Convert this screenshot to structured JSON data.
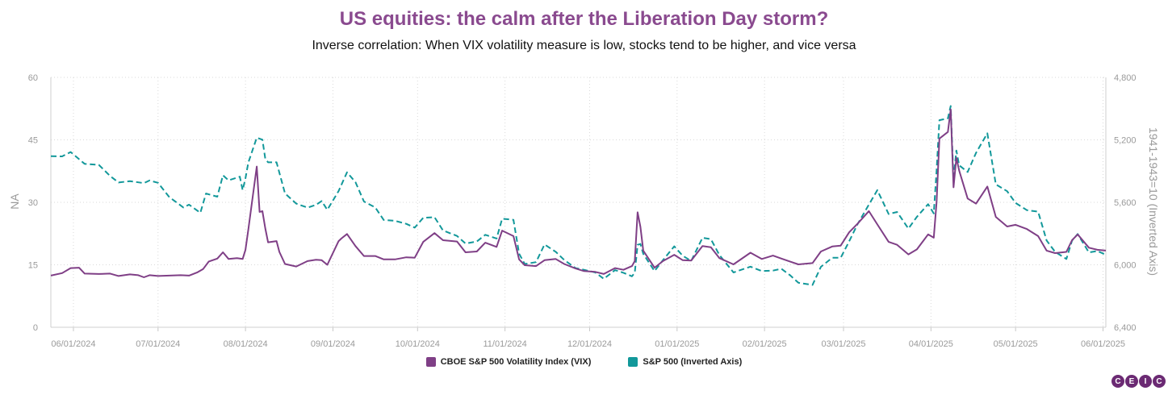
{
  "title": "US equities: the calm after the Liberation Day storm?",
  "subtitle": "Inverse correlation: When VIX volatility measure is low, stocks tend to be higher, and vice versa",
  "colors": {
    "vix": "#7f3f86",
    "spx": "#12989a",
    "title": "#8a4a8f",
    "grid": "#d9d9d9"
  },
  "logo": [
    "C",
    "E",
    "I",
    "C"
  ],
  "chart_data": {
    "type": "line",
    "x_ticks": [
      "06/01/2024",
      "07/01/2024",
      "08/01/2024",
      "09/01/2024",
      "10/01/2024",
      "11/01/2024",
      "12/01/2024",
      "01/01/2025",
      "02/01/2025",
      "03/01/2025",
      "04/01/2025",
      "05/01/2025",
      "06/01/2025"
    ],
    "xlim": [
      "05/24/2024",
      "06/02/2025"
    ],
    "left_axis": {
      "label": "NA",
      "ylim": [
        0,
        60
      ],
      "ticks": [
        "0",
        "15",
        "30",
        "45",
        "60"
      ]
    },
    "right_axis": {
      "label": "1941-1943=10 (Inverted Axis)",
      "ylim": [
        6400,
        4800
      ],
      "inverted": true,
      "ticks": [
        "4,800",
        "5,200",
        "5,600",
        "6,000",
        "6,400"
      ]
    },
    "grid": true,
    "legend_position": "bottom",
    "series": [
      {
        "name": "CBOE S&P 500 Volatility Index (VIX)",
        "axis": "left",
        "style": "solid",
        "points": [
          [
            "05/24/2024",
            12.4
          ],
          [
            "05/28/2024",
            13.0
          ],
          [
            "05/31/2024",
            14.2
          ],
          [
            "06/03/2024",
            14.3
          ],
          [
            "06/05/2024",
            12.9
          ],
          [
            "06/10/2024",
            12.8
          ],
          [
            "06/14/2024",
            12.9
          ],
          [
            "06/17/2024",
            12.3
          ],
          [
            "06/21/2024",
            12.7
          ],
          [
            "06/24/2024",
            12.5
          ],
          [
            "06/26/2024",
            12.0
          ],
          [
            "06/28/2024",
            12.5
          ],
          [
            "07/01/2024",
            12.3
          ],
          [
            "07/05/2024",
            12.4
          ],
          [
            "07/09/2024",
            12.5
          ],
          [
            "07/12/2024",
            12.4
          ],
          [
            "07/15/2024",
            13.2
          ],
          [
            "07/17/2024",
            14.0
          ],
          [
            "07/19/2024",
            15.8
          ],
          [
            "07/22/2024",
            16.5
          ],
          [
            "07/24/2024",
            18.0
          ],
          [
            "07/26/2024",
            16.4
          ],
          [
            "07/29/2024",
            16.6
          ],
          [
            "07/31/2024",
            16.4
          ],
          [
            "08/01/2024",
            18.6
          ],
          [
            "08/02/2024",
            23.4
          ],
          [
            "08/05/2024",
            38.6
          ],
          [
            "08/06/2024",
            27.7
          ],
          [
            "08/07/2024",
            27.9
          ],
          [
            "08/08/2024",
            23.8
          ],
          [
            "08/09/2024",
            20.4
          ],
          [
            "08/12/2024",
            20.7
          ],
          [
            "08/13/2024",
            18.1
          ],
          [
            "08/15/2024",
            15.2
          ],
          [
            "08/19/2024",
            14.6
          ],
          [
            "08/23/2024",
            15.9
          ],
          [
            "08/26/2024",
            16.2
          ],
          [
            "08/28/2024",
            16.1
          ],
          [
            "08/30/2024",
            15.0
          ],
          [
            "09/03/2024",
            20.7
          ],
          [
            "09/04/2024",
            21.3
          ],
          [
            "09/06/2024",
            22.4
          ],
          [
            "09/09/2024",
            19.5
          ],
          [
            "09/12/2024",
            17.1
          ],
          [
            "09/16/2024",
            17.1
          ],
          [
            "09/19/2024",
            16.3
          ],
          [
            "09/23/2024",
            16.3
          ],
          [
            "09/27/2024",
            16.8
          ],
          [
            "09/30/2024",
            16.7
          ],
          [
            "10/03/2024",
            20.5
          ],
          [
            "10/07/2024",
            22.6
          ],
          [
            "10/10/2024",
            20.9
          ],
          [
            "10/15/2024",
            20.6
          ],
          [
            "10/18/2024",
            18.0
          ],
          [
            "10/22/2024",
            18.2
          ],
          [
            "10/25/2024",
            20.3
          ],
          [
            "10/29/2024",
            19.3
          ],
          [
            "10/31/2024",
            23.2
          ],
          [
            "11/04/2024",
            21.9
          ],
          [
            "11/06/2024",
            16.3
          ],
          [
            "11/08/2024",
            14.9
          ],
          [
            "11/12/2024",
            14.7
          ],
          [
            "11/15/2024",
            16.1
          ],
          [
            "11/19/2024",
            16.4
          ],
          [
            "11/22/2024",
            15.2
          ],
          [
            "11/26/2024",
            14.1
          ],
          [
            "11/29/2024",
            13.5
          ],
          [
            "12/03/2024",
            13.3
          ],
          [
            "12/06/2024",
            12.8
          ],
          [
            "12/10/2024",
            14.2
          ],
          [
            "12/13/2024",
            13.8
          ],
          [
            "12/16/2024",
            14.7
          ],
          [
            "12/17/2024",
            15.9
          ],
          [
            "12/18/2024",
            27.6
          ],
          [
            "12/19/2024",
            24.1
          ],
          [
            "12/20/2024",
            18.4
          ],
          [
            "12/24/2024",
            14.3
          ],
          [
            "12/27/2024",
            15.9
          ],
          [
            "12/31/2024",
            17.4
          ],
          [
            "01/03/2025",
            16.1
          ],
          [
            "01/06/2025",
            16.0
          ],
          [
            "01/10/2025",
            19.5
          ],
          [
            "01/13/2025",
            19.2
          ],
          [
            "01/16/2025",
            16.6
          ],
          [
            "01/21/2025",
            15.1
          ],
          [
            "01/27/2025",
            17.9
          ],
          [
            "01/31/2025",
            16.4
          ],
          [
            "02/04/2025",
            17.2
          ],
          [
            "02/07/2025",
            16.5
          ],
          [
            "02/10/2025",
            15.8
          ],
          [
            "02/13/2025",
            15.1
          ],
          [
            "02/18/2025",
            15.4
          ],
          [
            "02/21/2025",
            18.2
          ],
          [
            "02/25/2025",
            19.4
          ],
          [
            "02/28/2025",
            19.6
          ],
          [
            "03/03/2025",
            22.8
          ],
          [
            "03/06/2025",
            24.9
          ],
          [
            "03/10/2025",
            27.9
          ],
          [
            "03/13/2025",
            24.7
          ],
          [
            "03/17/2025",
            20.5
          ],
          [
            "03/20/2025",
            19.8
          ],
          [
            "03/24/2025",
            17.5
          ],
          [
            "03/27/2025",
            18.7
          ],
          [
            "03/31/2025",
            22.3
          ],
          [
            "04/02/2025",
            21.5
          ],
          [
            "04/03/2025",
            30.0
          ],
          [
            "04/04/2025",
            45.3
          ],
          [
            "04/07/2025",
            46.9
          ],
          [
            "04/08/2025",
            52.3
          ],
          [
            "04/09/2025",
            33.6
          ],
          [
            "04/10/2025",
            40.7
          ],
          [
            "04/11/2025",
            37.6
          ],
          [
            "04/14/2025",
            30.9
          ],
          [
            "04/17/2025",
            29.7
          ],
          [
            "04/21/2025",
            33.8
          ],
          [
            "04/24/2025",
            26.5
          ],
          [
            "04/28/2025",
            24.2
          ],
          [
            "05/01/2025",
            24.6
          ],
          [
            "05/05/2025",
            23.6
          ],
          [
            "05/09/2025",
            21.9
          ],
          [
            "05/12/2025",
            18.4
          ],
          [
            "05/15/2025",
            17.8
          ],
          [
            "05/19/2025",
            18.1
          ],
          [
            "05/21/2025",
            20.9
          ],
          [
            "05/23/2025",
            22.3
          ],
          [
            "05/27/2025",
            19.1
          ],
          [
            "05/30/2025",
            18.6
          ],
          [
            "06/02/2025",
            18.4
          ]
        ]
      },
      {
        "name": "S&P 500 (Inverted Axis)",
        "axis": "right",
        "style": "dashed",
        "points": [
          [
            "05/24/2024",
            5305
          ],
          [
            "05/28/2024",
            5306
          ],
          [
            "05/31/2024",
            5278
          ],
          [
            "06/05/2024",
            5354
          ],
          [
            "06/10/2024",
            5360
          ],
          [
            "06/14/2024",
            5431
          ],
          [
            "06/17/2024",
            5473
          ],
          [
            "06/21/2024",
            5464
          ],
          [
            "06/26/2024",
            5477
          ],
          [
            "06/28/2024",
            5460
          ],
          [
            "07/01/2024",
            5475
          ],
          [
            "07/05/2024",
            5567
          ],
          [
            "07/10/2024",
            5633
          ],
          [
            "07/12/2024",
            5615
          ],
          [
            "07/16/2024",
            5667
          ],
          [
            "07/18/2024",
            5544
          ],
          [
            "07/22/2024",
            5564
          ],
          [
            "07/24/2024",
            5427
          ],
          [
            "07/26/2024",
            5459
          ],
          [
            "07/30/2024",
            5436
          ],
          [
            "07/31/2024",
            5522
          ],
          [
            "08/01/2024",
            5446
          ],
          [
            "08/02/2024",
            5346
          ],
          [
            "08/05/2024",
            5186
          ],
          [
            "08/07/2024",
            5199
          ],
          [
            "08/08/2024",
            5319
          ],
          [
            "08/09/2024",
            5344
          ],
          [
            "08/12/2024",
            5344
          ],
          [
            "08/15/2024",
            5543
          ],
          [
            "08/19/2024",
            5608
          ],
          [
            "08/23/2024",
            5634
          ],
          [
            "08/26/2024",
            5616
          ],
          [
            "08/28/2024",
            5592
          ],
          [
            "08/30/2024",
            5648
          ],
          [
            "09/03/2024",
            5528
          ],
          [
            "09/06/2024",
            5408
          ],
          [
            "09/09/2024",
            5471
          ],
          [
            "09/12/2024",
            5595
          ],
          [
            "09/16/2024",
            5633
          ],
          [
            "09/19/2024",
            5713
          ],
          [
            "09/23/2024",
            5718
          ],
          [
            "09/27/2024",
            5738
          ],
          [
            "09/30/2024",
            5762
          ],
          [
            "10/03/2024",
            5699
          ],
          [
            "10/07/2024",
            5695
          ],
          [
            "10/10/2024",
            5780
          ],
          [
            "10/15/2024",
            5815
          ],
          [
            "10/18/2024",
            5864
          ],
          [
            "10/22/2024",
            5851
          ],
          [
            "10/25/2024",
            5808
          ],
          [
            "10/29/2024",
            5832
          ],
          [
            "10/31/2024",
            5705
          ],
          [
            "11/04/2024",
            5712
          ],
          [
            "11/06/2024",
            5929
          ],
          [
            "11/08/2024",
            5995
          ],
          [
            "11/12/2024",
            5983
          ],
          [
            "11/15/2024",
            5870
          ],
          [
            "11/19/2024",
            5917
          ],
          [
            "11/22/2024",
            5969
          ],
          [
            "11/26/2024",
            6021
          ],
          [
            "11/29/2024",
            6032
          ],
          [
            "12/03/2024",
            6049
          ],
          [
            "12/06/2024",
            6090
          ],
          [
            "12/10/2024",
            6034
          ],
          [
            "12/13/2024",
            6051
          ],
          [
            "12/16/2024",
            6074
          ],
          [
            "12/17/2024",
            6050
          ],
          [
            "12/18/2024",
            5872
          ],
          [
            "12/19/2024",
            5867
          ],
          [
            "12/20/2024",
            5930
          ],
          [
            "12/24/2024",
            6040
          ],
          [
            "12/27/2024",
            5970
          ],
          [
            "12/31/2024",
            5882
          ],
          [
            "01/03/2025",
            5942
          ],
          [
            "01/06/2025",
            5975
          ],
          [
            "01/10/2025",
            5827
          ],
          [
            "01/13/2025",
            5836
          ],
          [
            "01/16/2025",
            5937
          ],
          [
            "01/21/2025",
            6049
          ],
          [
            "01/27/2025",
            6012
          ],
          [
            "01/31/2025",
            6040
          ],
          [
            "02/04/2025",
            6037
          ],
          [
            "02/07/2025",
            6026
          ],
          [
            "02/10/2025",
            6066
          ],
          [
            "02/13/2025",
            6115
          ],
          [
            "02/18/2025",
            6129
          ],
          [
            "02/21/2025",
            6013
          ],
          [
            "02/25/2025",
            5955
          ],
          [
            "02/28/2025",
            5955
          ],
          [
            "03/03/2025",
            5850
          ],
          [
            "03/06/2025",
            5739
          ],
          [
            "03/10/2025",
            5615
          ],
          [
            "03/13/2025",
            5522
          ],
          [
            "03/17/2025",
            5675
          ],
          [
            "03/20/2025",
            5662
          ],
          [
            "03/24/2025",
            5768
          ],
          [
            "03/27/2025",
            5693
          ],
          [
            "03/31/2025",
            5612
          ],
          [
            "04/02/2025",
            5671
          ],
          [
            "04/03/2025",
            5397
          ],
          [
            "04/04/2025",
            5074
          ],
          [
            "04/07/2025",
            5062
          ],
          [
            "04/08/2025",
            4983
          ],
          [
            "04/09/2025",
            5457
          ],
          [
            "04/10/2025",
            5268
          ],
          [
            "04/11/2025",
            5363
          ],
          [
            "04/14/2025",
            5406
          ],
          [
            "04/17/2025",
            5283
          ],
          [
            "04/21/2025",
            5158
          ],
          [
            "04/24/2025",
            5485
          ],
          [
            "04/28/2025",
            5529
          ],
          [
            "05/01/2025",
            5604
          ],
          [
            "05/05/2025",
            5650
          ],
          [
            "05/09/2025",
            5660
          ],
          [
            "05/12/2025",
            5844
          ],
          [
            "05/15/2025",
            5917
          ],
          [
            "05/19/2025",
            5963
          ],
          [
            "05/21/2025",
            5845
          ],
          [
            "05/23/2025",
            5803
          ],
          [
            "05/27/2025",
            5921
          ],
          [
            "05/30/2025",
            5912
          ],
          [
            "06/02/2025",
            5936
          ]
        ]
      }
    ]
  }
}
